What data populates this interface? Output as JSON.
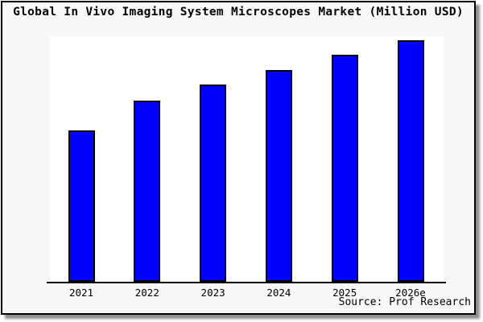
{
  "chart_data": {
    "type": "bar",
    "title": "Global In Vivo Imaging System Microscopes Market (Million USD)",
    "categories": [
      "2021",
      "2022",
      "2023",
      "2024",
      "2025",
      "2026e"
    ],
    "values": [
      188,
      225,
      245,
      263,
      282,
      300
    ],
    "value_scale_note": "bar heights in pixels; chart shows no numeric y-axis",
    "xlabel": "",
    "ylabel": "",
    "grid": false,
    "legend": null,
    "axes": {
      "y_axis_visible": false,
      "x_axis_line": true
    },
    "source": "Source: Prof Research",
    "colors": {
      "bar_fill": "#0000ff",
      "bar_border": "#000000",
      "card_background": "#f8f8f8",
      "plot_background": "#ffffff",
      "frame_border": "#000000",
      "shadow": "#8f8f8f",
      "text": "#000000"
    }
  }
}
